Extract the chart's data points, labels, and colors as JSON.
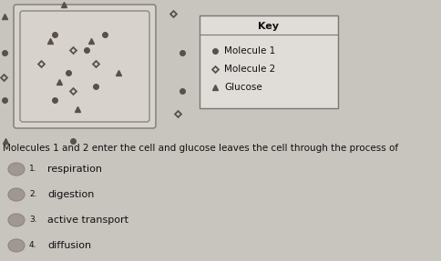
{
  "background_color": "#c8c4be",
  "title_text": "Molecules 1 and 2 enter the cell and glucose leaves the cell through the process of",
  "key_title": "Key",
  "key_entries": [
    "Molecule 1",
    "Molecule 2",
    "Glucose"
  ],
  "options": [
    "respiration",
    "digestion",
    "active transport",
    "diffusion"
  ],
  "option_numbers": [
    "1.",
    "2.",
    "3.",
    "4."
  ],
  "circle_color": "#5a504a",
  "diamond_color": "#5a504a",
  "triangle_color": "#5a504a",
  "text_color": "#111111",
  "option_circle_color": "#a09890",
  "cell_facecolor": "#d8d2cc",
  "cell_edgecolor": "#888880",
  "key_facecolor": "#e0dcd8",
  "key_edgecolor": "#777770"
}
